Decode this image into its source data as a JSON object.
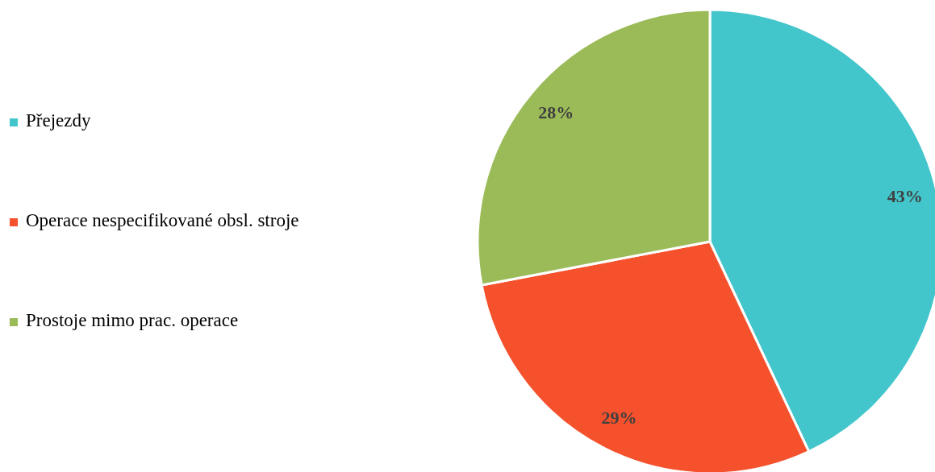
{
  "chart_data": {
    "type": "pie",
    "categories": [
      "Přejezdy",
      "Operace nespecifikované obsl. stroje",
      "Prostoje mimo prac. operace"
    ],
    "values": [
      43,
      29,
      28
    ],
    "colors": [
      "#43c6cb",
      "#f4512c",
      "#9bbb59"
    ],
    "value_labels": [
      "43%",
      "29%",
      "28%"
    ],
    "legend": "left"
  }
}
